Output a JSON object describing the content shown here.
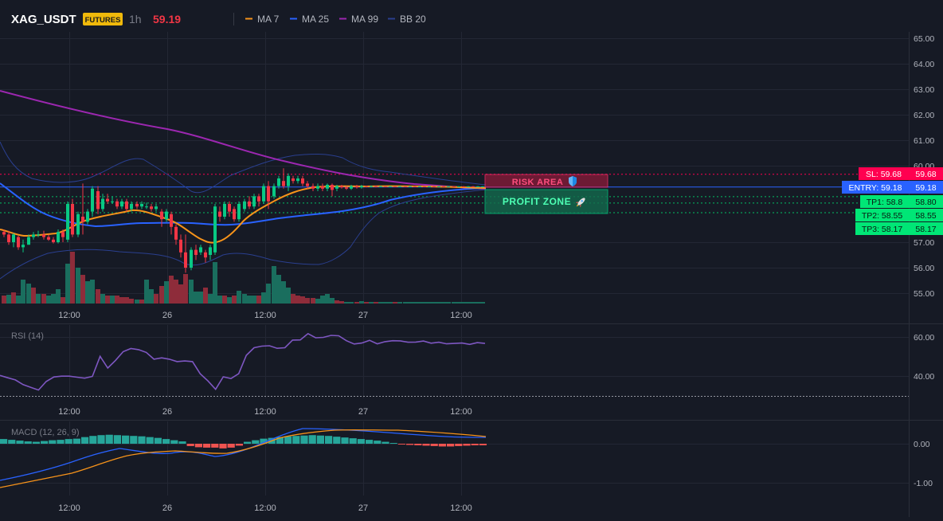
{
  "header": {
    "symbol": "XAG_USDT",
    "badge": "FUTURES",
    "interval": "1h",
    "price": "59.19",
    "legend": [
      {
        "label": "MA 7",
        "color": "#f7931a"
      },
      {
        "label": "MA 25",
        "color": "#2962ff"
      },
      {
        "label": "MA 99",
        "color": "#9c27b0"
      },
      {
        "label": "BB 20",
        "color": "#2a3f8f"
      }
    ]
  },
  "colors": {
    "background": "#161a25",
    "grid": "#232734",
    "up": "#08c984",
    "down": "#f23645",
    "vol_up": "#1a6e5e",
    "vol_down": "#8e2c3a",
    "rsi": "#7e57c2",
    "macd_line": "#2962ff",
    "signal_line": "#f7931a",
    "sl": "#ff0050",
    "entry": "#2962ff",
    "tp": "#00e676"
  },
  "price_axis": {
    "ticks": [
      "65.00",
      "64.00",
      "63.00",
      "62.00",
      "61.00",
      "60.00",
      "57.00",
      "56.00",
      "55.00"
    ],
    "range": [
      54.6,
      65.0
    ]
  },
  "time_axis": {
    "labels": [
      "12:00",
      "26",
      "12:00",
      "27",
      "12:00"
    ]
  },
  "levels": {
    "sl": {
      "label": "SL: 59.68",
      "value_label": "59.68",
      "price": 59.68
    },
    "entry": {
      "label": "ENTRY: 59.18",
      "value_label": "59.18",
      "price": 59.18
    },
    "tp1": {
      "label": "TP1: 58.8",
      "value_label": "58.80",
      "price": 58.8
    },
    "tp2": {
      "label": "TP2: 58.55",
      "value_label": "58.55",
      "price": 58.55
    },
    "tp3": {
      "label": "TP3: 58.17",
      "value_label": "58.17",
      "price": 58.17
    }
  },
  "zones": {
    "risk_label": "RISK AREA",
    "risk_icon": "shield-icon",
    "profit_label": "PROFIT ZONE",
    "profit_icon": "rocket-icon"
  },
  "rsi": {
    "title": "RSI (14)",
    "ticks": [
      "60.00",
      "40.00"
    ],
    "range": [
      28,
      64
    ],
    "values": [
      40.3,
      39.1,
      38.0,
      35.6,
      34.2,
      32.8,
      37.2,
      39.5,
      39.9,
      39.9,
      39.4,
      38.9,
      39.8,
      50.1,
      44.1,
      48.0,
      52.5,
      54.1,
      53.5,
      52.1,
      48.6,
      49.3,
      48.6,
      47.4,
      47.7,
      47.4,
      41.2,
      37.5,
      33.2,
      39.6,
      38.7,
      41.2,
      50.6,
      54.5,
      55.3,
      55.5,
      54.2,
      54.5,
      58.4,
      58.5,
      61.7,
      59.6,
      59.8,
      60.8,
      60.6,
      58.1,
      56.4,
      56.9,
      58.3,
      56.5,
      57.6,
      58.1,
      58.0,
      57.3,
      57.4,
      57.9,
      56.8,
      57.3,
      56.5,
      56.7,
      56.9,
      56.2,
      57.1,
      56.7
    ]
  },
  "macd": {
    "title": "MACD (12, 26, 9)",
    "ticks": [
      "0.00",
      "-1.00"
    ],
    "range": [
      -1.35,
      0.35
    ],
    "hist": [
      0.12,
      0.1,
      0.08,
      0.06,
      0.05,
      0.07,
      0.09,
      0.1,
      0.12,
      0.13,
      0.17,
      0.2,
      0.22,
      0.23,
      0.22,
      0.21,
      0.2,
      0.19,
      0.17,
      0.15,
      0.12,
      0.09,
      0.06,
      -0.06,
      -0.09,
      -0.1,
      -0.1,
      -0.12,
      -0.1,
      -0.05,
      0.05,
      0.09,
      0.13,
      0.15,
      0.17,
      0.19,
      0.2,
      0.21,
      0.22,
      0.21,
      0.2,
      0.18,
      0.16,
      0.14,
      0.12,
      0.1,
      0.08,
      0.05,
      0.02,
      -0.01,
      -0.03,
      -0.04,
      -0.05,
      -0.06,
      -0.07,
      -0.07,
      -0.06,
      -0.05,
      -0.04,
      -0.04
    ]
  }
}
